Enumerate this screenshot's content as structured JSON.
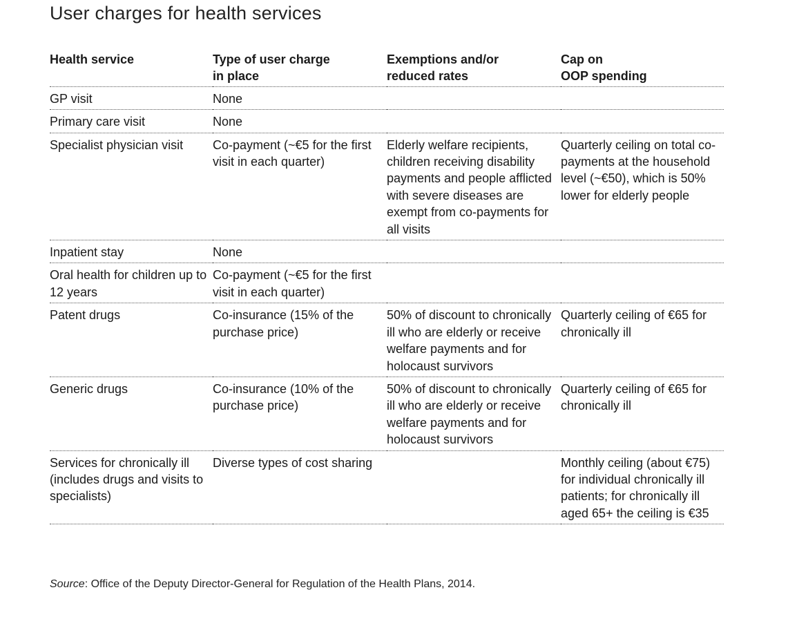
{
  "title": "User charges for health services",
  "columns": [
    "Health service",
    "Type of user charge\nin place",
    "Exemptions and/or\nreduced rates",
    "Cap on\nOOP spending"
  ],
  "rows": [
    {
      "service": "GP visit",
      "charge": "None",
      "exemptions": "",
      "cap": ""
    },
    {
      "service": "Primary care visit",
      "charge": "None",
      "exemptions": "",
      "cap": ""
    },
    {
      "service": "Specialist physician visit",
      "charge": "Co-payment (~€5 for the first visit in each quarter)",
      "exemptions": "Elderly welfare recipients, children receiving disability payments and people afflicted with severe diseases are exempt from co-payments for all visits",
      "cap": "Quarterly ceiling on total co-payments at the household level (~€50), which is 50% lower for elderly people"
    },
    {
      "service": "Inpatient stay",
      "charge": "None",
      "exemptions": "",
      "cap": ""
    },
    {
      "service": "Oral health for children up to 12 years",
      "charge": "Co-payment (~€5 for the first visit in each quarter)",
      "exemptions": "",
      "cap": ""
    },
    {
      "service": "Patent drugs",
      "charge": "Co-insurance (15% of the purchase price)",
      "exemptions": "50% of discount to chronically ill who are elderly or receive welfare payments and for holocaust survivors",
      "cap": "Quarterly ceiling of €65 for chronically ill"
    },
    {
      "service": "Generic drugs",
      "charge": "Co-insurance (10% of the purchase price)",
      "exemptions": "50% of discount to chronically ill who are elderly or receive welfare payments and for holocaust survivors",
      "cap": "Quarterly ceiling of €65 for chronically ill"
    },
    {
      "service": "Services for chronically ill (includes drugs and visits to specialists)",
      "charge": "Diverse types of cost sharing",
      "exemptions": "",
      "cap": "Monthly ceiling (about €75) for individual chronically ill patients; for chronically ill aged 65+ the ceiling is €35"
    }
  ],
  "source": {
    "label": "Source",
    "text": ": Office of the Deputy Director-General for Regulation of the Health Plans, 2014."
  }
}
